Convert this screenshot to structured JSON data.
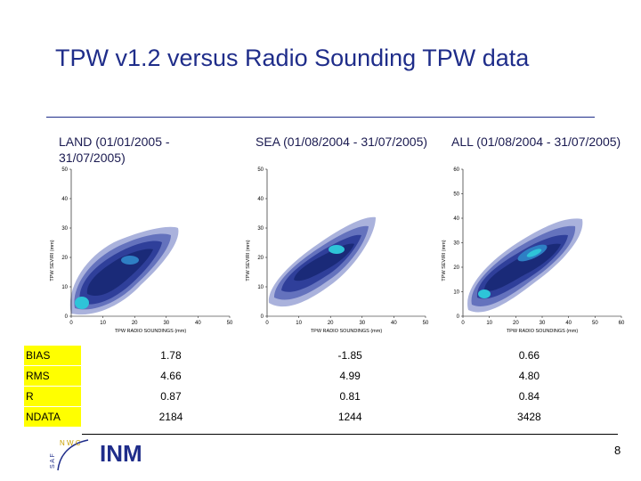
{
  "title": "TPW v1.2 versus Radio Sounding TPW data",
  "captions": [
    {
      "name": "LAND",
      "period": "(01/01/2005 - 31/07/2005)"
    },
    {
      "name": "SEA",
      "period": "(01/08/2004 - 31/07/2005)"
    },
    {
      "name": "ALL",
      "period": "(01/08/2004 - 31/07/2005)"
    }
  ],
  "chart_data": [
    {
      "type": "heatmap",
      "panel": "LAND",
      "xlabel": "TPW RADIO SOUNDINGS (mm)",
      "ylabel": "TPW SEVIRI (mm)",
      "xlim": [
        0,
        50
      ],
      "ylim": [
        0,
        50
      ],
      "xticks": [
        "0",
        "10",
        "20",
        "30",
        "40",
        "50"
      ],
      "yticks": [
        "0",
        "10",
        "20",
        "30",
        "40",
        "50"
      ]
    },
    {
      "type": "heatmap",
      "panel": "SEA",
      "xlabel": "TPW RADIO SOUNDINGS (mm)",
      "ylabel": "TPW SEVIRI (mm)",
      "xlim": [
        0,
        50
      ],
      "ylim": [
        0,
        50
      ],
      "xticks": [
        "0",
        "10",
        "20",
        "30",
        "40",
        "50"
      ],
      "yticks": [
        "0",
        "10",
        "20",
        "30",
        "40",
        "50"
      ]
    },
    {
      "type": "heatmap",
      "panel": "ALL",
      "xlabel": "TPW RADIO SOUNDINGS (mm)",
      "ylabel": "TPW SEVIRI (mm)",
      "xlim": [
        0,
        60
      ],
      "ylim": [
        0,
        60
      ],
      "xticks": [
        "0",
        "10",
        "20",
        "30",
        "40",
        "50",
        "60"
      ],
      "yticks": [
        "0",
        "10",
        "20",
        "30",
        "40",
        "50",
        "60"
      ]
    }
  ],
  "table": {
    "rows": [
      {
        "label": "BIAS",
        "values": [
          "1.78",
          "-1.85",
          "0.66"
        ]
      },
      {
        "label": "RMS",
        "values": [
          "4.66",
          "4.99",
          "4.80"
        ]
      },
      {
        "label": "R",
        "values": [
          "0.87",
          "0.81",
          "0.84"
        ]
      },
      {
        "label": "NDATA",
        "values": [
          "2184",
          "1244",
          "3428"
        ]
      }
    ]
  },
  "logos": {
    "nwc": "N W C",
    "saf": "S A F",
    "inm": "INM"
  },
  "page_number": "8",
  "colors": {
    "title": "#1f2d8a",
    "highlight": "#ffff00",
    "contour_dark": "#1a2a78",
    "contour_light": "#2ec4d8"
  }
}
